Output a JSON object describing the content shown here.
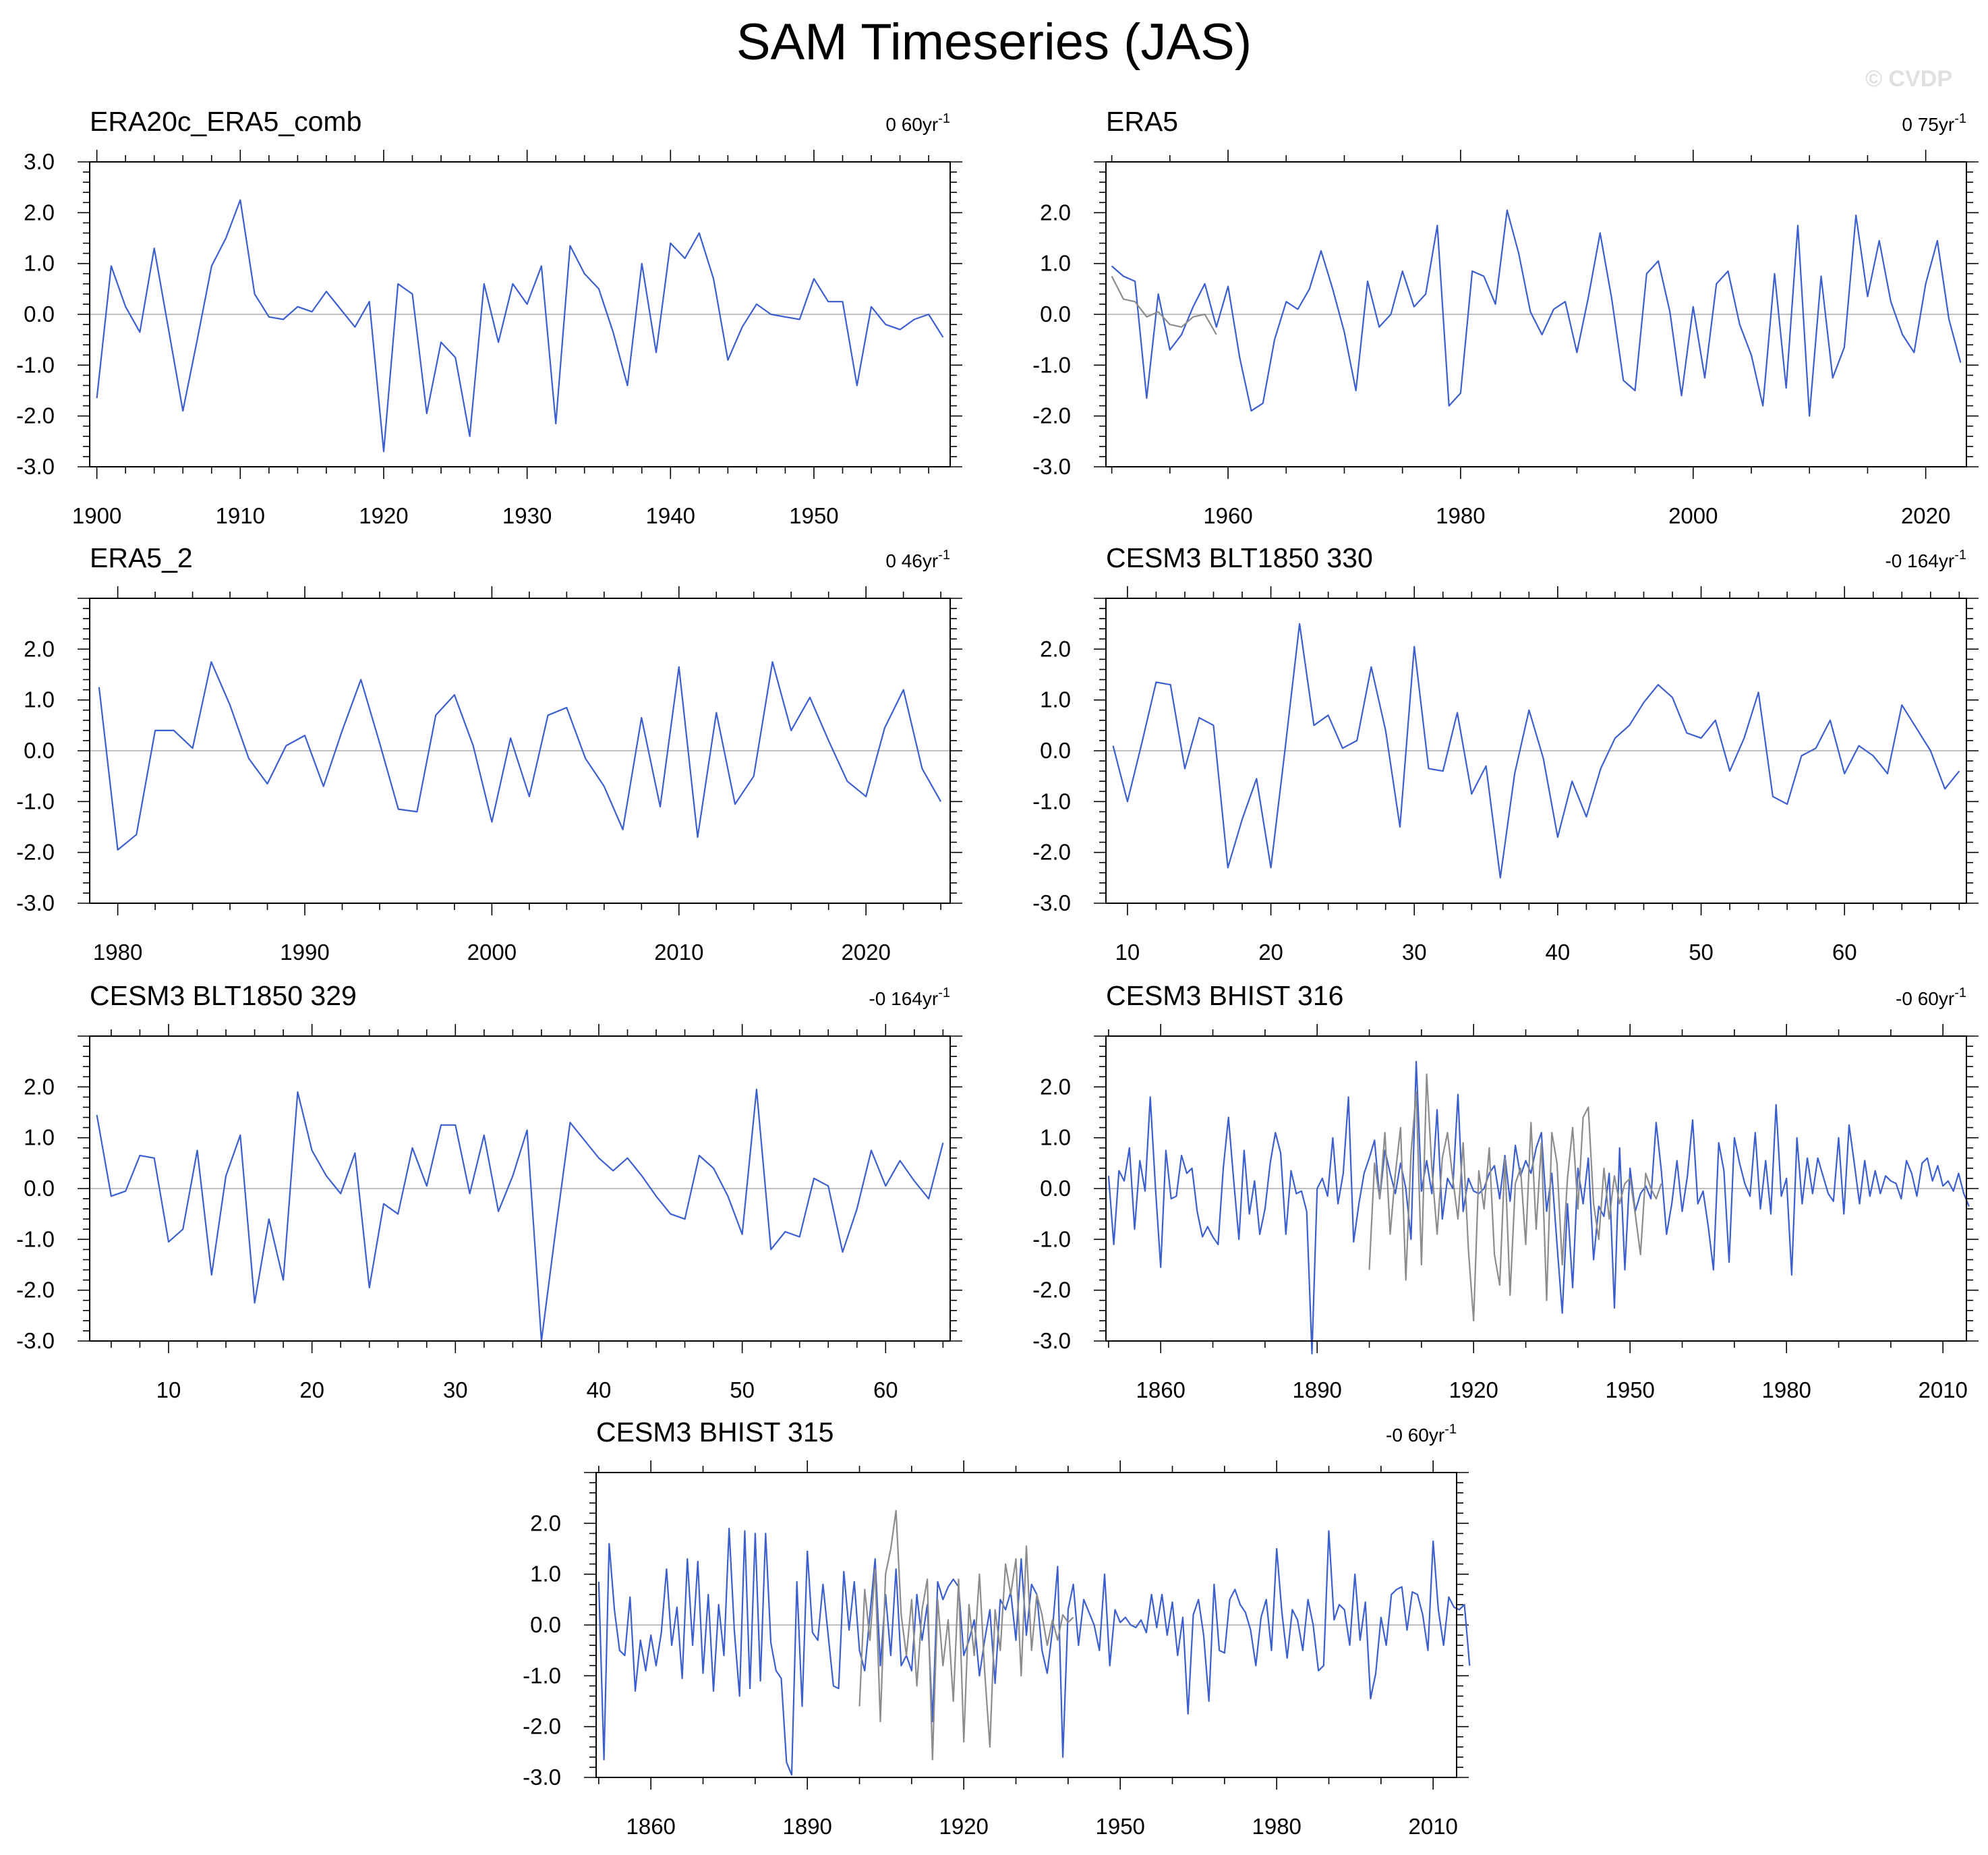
{
  "title": "SAM Timeseries (JAS)",
  "watermark": "© CVDP",
  "colors": {
    "main_series": "#3b5fcf",
    "secondary_series": "#8c8c8c",
    "zero_line": "#c0c0c0"
  },
  "chart_data": [
    {
      "type": "line",
      "title": "ERA20c_ERA5_comb",
      "trend_label": "0 60yr",
      "trend_unit_exp": "-1",
      "ylim": [
        -3.0,
        3.0
      ],
      "yticks": [
        "3.0",
        "2.0",
        "1.0",
        "0.0",
        "-1.0",
        "-2.0",
        "-3.0"
      ],
      "xlim": [
        1899.5,
        1959.5
      ],
      "xticks": [
        1900,
        1910,
        1920,
        1930,
        1940,
        1950
      ],
      "x_start": 1900,
      "series": [
        {
          "values": [
            -1.65,
            0.95,
            0.15,
            -0.35,
            1.3,
            -0.3,
            -1.9,
            -0.5,
            0.95,
            1.5,
            2.25,
            0.4,
            -0.05,
            -0.1,
            0.15,
            0.05,
            0.45,
            0.1,
            -0.25,
            0.25,
            -2.7,
            0.6,
            0.4,
            -1.95,
            -0.55,
            -0.85,
            -2.4,
            0.6,
            -0.55,
            0.6,
            0.2,
            0.95,
            -2.15,
            1.35,
            0.8,
            0.5,
            -0.35,
            -1.4,
            1.0,
            -0.75,
            1.4,
            1.1,
            1.6,
            0.7,
            -0.9,
            -0.25,
            0.2,
            0.0,
            -0.05,
            -0.1,
            0.7,
            0.25,
            0.25,
            -1.4,
            0.15,
            -0.2,
            -0.3,
            -0.1,
            0.0,
            -0.45
          ]
        }
      ]
    },
    {
      "type": "line",
      "title": "ERA5",
      "trend_label": "0 75yr",
      "trend_unit_exp": "-1",
      "ylim": [
        -3.0,
        2.0
      ],
      "yticks": [
        "2.0",
        "1.0",
        "0.0",
        "-1.0",
        "-2.0",
        "-3.0"
      ],
      "xlim": [
        1949.5,
        2023.5
      ],
      "xticks": [
        1960,
        1980,
        2000,
        2020
      ],
      "x_start": 1950,
      "series": [
        {
          "values": [
            0.95,
            0.75,
            0.65,
            -1.65,
            0.4,
            -0.7,
            -0.4,
            0.15,
            0.6,
            -0.25,
            0.55,
            -0.85,
            -1.9,
            -1.75,
            -0.5,
            0.25,
            0.1,
            0.5,
            1.25,
            0.5,
            -0.35,
            -1.5,
            0.65,
            -0.25,
            0.0,
            0.85,
            0.15,
            0.4,
            1.75,
            -1.8,
            -1.55,
            0.85,
            0.75,
            0.2,
            2.05,
            1.2,
            0.05,
            -0.4,
            0.1,
            0.25,
            -0.75,
            0.35,
            1.6,
            0.3,
            -1.3,
            -1.5,
            0.8,
            1.05,
            0.05,
            -1.6,
            0.15,
            -1.25,
            0.6,
            0.85,
            -0.2,
            -0.8,
            -1.8,
            0.8,
            -1.45,
            1.75,
            -2.0,
            0.75,
            -1.25,
            -0.65,
            1.95,
            0.35,
            1.45,
            0.25,
            -0.4,
            -0.75,
            0.6,
            1.45,
            -0.1,
            -0.95
          ]
        },
        {
          "values": [
            0.75,
            0.3,
            0.25,
            -0.05,
            0.05,
            -0.2,
            -0.25,
            -0.05,
            0.0,
            -0.4
          ],
          "secondary": true
        }
      ]
    },
    {
      "type": "line",
      "title": "ERA5_2",
      "trend_label": "0 46yr",
      "trend_unit_exp": "-1",
      "ylim": [
        -3.0,
        2.0
      ],
      "yticks": [
        "2.0",
        "1.0",
        "0.0",
        "-1.0",
        "-2.0",
        "-3.0"
      ],
      "xlim": [
        1978.5,
        2024.5
      ],
      "xticks": [
        1980,
        1990,
        2000,
        2010,
        2020
      ],
      "x_start": 1979,
      "series": [
        {
          "values": [
            1.25,
            -1.95,
            -1.65,
            0.4,
            0.4,
            0.05,
            1.75,
            0.9,
            -0.15,
            -0.65,
            0.1,
            0.3,
            -0.7,
            0.4,
            1.4,
            0.15,
            -1.15,
            -1.2,
            0.7,
            1.1,
            0.1,
            -1.4,
            0.25,
            -0.9,
            0.7,
            0.85,
            -0.15,
            -0.7,
            -1.55,
            0.65,
            -1.1,
            1.65,
            -1.7,
            0.75,
            -1.05,
            -0.5,
            1.75,
            0.4,
            1.05,
            0.2,
            -0.6,
            -0.9,
            0.45,
            1.2,
            -0.35,
            -1.0
          ]
        }
      ]
    },
    {
      "type": "line",
      "title": "CESM3 BLT1850 330",
      "trend_label": "-0 164yr",
      "trend_unit_exp": "-1",
      "ylim": [
        -3.0,
        2.0
      ],
      "yticks": [
        "2.0",
        "1.0",
        "0.0",
        "-1.0",
        "-2.0",
        "-3.0"
      ],
      "xlim": [
        8.5,
        68.5
      ],
      "xticks": [
        10,
        20,
        30,
        40,
        50,
        60
      ],
      "x_start": 9,
      "series": [
        {
          "values": [
            0.1,
            -1.0,
            0.15,
            1.35,
            1.3,
            -0.35,
            0.65,
            0.5,
            -2.3,
            -1.35,
            -0.55,
            -2.3,
            0.05,
            2.5,
            0.5,
            0.7,
            0.05,
            0.2,
            1.65,
            0.4,
            -1.5,
            2.05,
            -0.35,
            -0.4,
            0.75,
            -0.85,
            -0.3,
            -2.5,
            -0.45,
            0.8,
            -0.15,
            -1.7,
            -0.6,
            -1.3,
            -0.35,
            0.25,
            0.5,
            0.95,
            1.3,
            1.05,
            0.35,
            0.25,
            0.6,
            -0.4,
            0.25,
            1.15,
            -0.9,
            -1.05,
            -0.1,
            0.05,
            0.6,
            -0.45,
            0.1,
            -0.1,
            -0.45,
            0.9,
            0.45,
            0.0,
            -0.75,
            -0.4
          ]
        }
      ]
    },
    {
      "type": "line",
      "title": "CESM3 BLT1850 329",
      "trend_label": "-0 164yr",
      "trend_unit_exp": "-1",
      "ylim": [
        -3.0,
        2.0
      ],
      "yticks": [
        "2.0",
        "1.0",
        "0.0",
        "-1.0",
        "-2.0",
        "-3.0"
      ],
      "xlim": [
        4.5,
        64.5
      ],
      "xticks": [
        10,
        20,
        30,
        40,
        50,
        60
      ],
      "x_start": 5,
      "series": [
        {
          "values": [
            1.45,
            -0.15,
            -0.05,
            0.65,
            0.6,
            -1.05,
            -0.8,
            0.75,
            -1.7,
            0.25,
            1.05,
            -2.25,
            -0.6,
            -1.8,
            1.9,
            0.75,
            0.25,
            -0.1,
            0.7,
            -1.95,
            -0.3,
            -0.5,
            0.8,
            0.05,
            1.25,
            1.25,
            -0.1,
            1.05,
            -0.45,
            0.25,
            1.15,
            -3.0,
            -0.8,
            1.3,
            0.95,
            0.6,
            0.35,
            0.6,
            0.25,
            -0.15,
            -0.5,
            -0.6,
            0.65,
            0.4,
            -0.15,
            -0.9,
            1.95,
            -1.2,
            -0.85,
            -0.95,
            0.2,
            0.05,
            -1.25,
            -0.4,
            0.75,
            0.05,
            0.55,
            0.15,
            -0.2,
            0.9
          ]
        }
      ]
    },
    {
      "type": "line",
      "title": "CESM3 BHIST 316",
      "trend_label": "-0 60yr",
      "trend_unit_exp": "-1",
      "ylim": [
        -3.0,
        2.0
      ],
      "yticks": [
        "2.0",
        "1.0",
        "0.0",
        "-1.0",
        "-2.0",
        "-3.0"
      ],
      "xlim": [
        1849.5,
        2014.5
      ],
      "xticks": [
        1860,
        1890,
        1920,
        1950,
        1980,
        2010
      ],
      "x_start": 1850,
      "series": [
        {
          "values": [
            0.25,
            -1.1,
            0.35,
            0.15,
            0.8,
            -0.8,
            0.55,
            -0.05,
            1.8,
            0.0,
            -1.55,
            0.75,
            -0.2,
            -0.15,
            0.65,
            0.3,
            0.4,
            -0.45,
            -0.95,
            -0.75,
            -0.95,
            -1.1,
            0.4,
            1.4,
            0.15,
            -1.0,
            0.75,
            -0.5,
            0.15,
            -0.9,
            -0.4,
            0.5,
            1.1,
            0.7,
            -0.9,
            0.35,
            -0.1,
            -0.05,
            -0.45,
            -3.25,
            0.0,
            0.2,
            -0.15,
            1.0,
            -0.3,
            0.3,
            1.8,
            -1.05,
            -0.3,
            0.3,
            0.6,
            0.95,
            -0.2,
            0.75,
            0.3,
            -0.1,
            0.5,
            0.0,
            -1.0,
            2.5,
            -0.05,
            0.55,
            -0.1,
            1.55,
            -0.6,
            0.2,
            0.0,
            1.85,
            -0.45,
            0.2,
            -0.05,
            -0.1,
            0.0,
            0.3,
            0.45,
            -0.2,
            0.65,
            -0.25,
            0.85,
            0.25,
            0.55,
            0.3,
            0.8,
            1.1,
            -0.45,
            0.3,
            -1.1,
            -2.45,
            -0.3,
            -1.95,
            0.4,
            -0.3,
            0.6,
            -1.4,
            -0.35,
            -0.55,
            0.3,
            -2.35,
            0.8,
            -1.6,
            0.4,
            -0.45,
            -0.1,
            0.05,
            -0.2,
            1.3,
            0.35,
            -0.9,
            -0.3,
            0.55,
            -0.45,
            0.25,
            1.35,
            -0.3,
            -0.05,
            -0.75,
            -1.6,
            0.9,
            0.35,
            -1.45,
            1.0,
            0.5,
            0.1,
            -0.15,
            1.1,
            -0.4,
            0.55,
            -0.5,
            1.65,
            -0.15,
            0.2,
            -1.7,
            1.0,
            -0.3,
            0.6,
            -0.1,
            0.6,
            0.25,
            -0.1,
            -0.25,
            1.0,
            -0.5,
            1.25,
            0.5,
            -0.3,
            0.55,
            -0.15,
            0.35,
            -0.1,
            0.25,
            0.15,
            0.1,
            -0.2,
            0.55,
            0.3,
            -0.15,
            0.5,
            0.6,
            0.15,
            0.45,
            0.05,
            0.15,
            -0.05,
            0.3,
            -0.1,
            -0.35
          ]
        },
        {
          "values": [
            -1.6,
            0.5,
            -0.2,
            1.1,
            -0.9,
            0.3,
            1.2,
            -1.8,
            0.7,
            1.9,
            -1.5,
            2.25,
            0.4,
            -0.9,
            0.6,
            1.1,
            0.2,
            -0.6,
            0.9,
            -1.2,
            -2.6,
            0.35,
            -0.4,
            0.8,
            -1.3,
            -1.9,
            0.6,
            -2.1,
            0.1,
            0.4,
            -1.1,
            1.3,
            -0.8,
            0.9,
            -2.2,
            1.1,
            0.5,
            -1.5,
            0.2,
            1.2,
            -0.4,
            1.4,
            1.6,
            -0.3,
            -1.0,
            0.4,
            -0.6,
            0.25,
            -0.3,
            0.1,
            0.2,
            -0.5,
            -1.3,
            0.3,
            0.0,
            -0.2,
            0.1
          ],
          "secondary": true,
          "x_start": 1900
        }
      ]
    },
    {
      "type": "line",
      "title": "CESM3 BHIST 315",
      "trend_label": "-0 60yr",
      "trend_unit_exp": "-1",
      "ylim": [
        -3.0,
        2.0
      ],
      "yticks": [
        "2.0",
        "1.0",
        "0.0",
        "-1.0",
        "-2.0",
        "-3.0"
      ],
      "xlim": [
        1849.5,
        2014.5
      ],
      "xticks": [
        1860,
        1890,
        1920,
        1950,
        1980,
        2010
      ],
      "x_start": 1850,
      "series": [
        {
          "values": [
            0.85,
            -2.65,
            1.6,
            0.3,
            -0.5,
            -0.6,
            0.55,
            -1.3,
            -0.3,
            -0.9,
            -0.2,
            -0.8,
            -0.15,
            1.1,
            -0.4,
            0.35,
            -1.05,
            1.3,
            -0.4,
            1.25,
            -0.95,
            0.6,
            -1.3,
            0.4,
            -0.6,
            1.9,
            -0.1,
            -1.4,
            1.85,
            -1.25,
            1.8,
            -1.1,
            1.8,
            -0.35,
            -0.9,
            -1.05,
            -2.7,
            -2.95,
            0.85,
            -1.6,
            1.45,
            -0.15,
            -0.3,
            0.8,
            -0.2,
            -1.2,
            -1.25,
            1.05,
            -0.1,
            0.85,
            -0.5,
            -0.9,
            0.2,
            1.3,
            -0.8,
            0.6,
            -0.6,
            1.1,
            -0.8,
            -0.6,
            -0.9,
            0.6,
            -0.3,
            0.4,
            -1.9,
            0.85,
            0.5,
            0.75,
            0.9,
            0.75,
            -0.6,
            -0.3,
            0.1,
            -1.0,
            -0.3,
            0.3,
            -1.15,
            0.5,
            0.3,
            0.65,
            -0.3,
            1.3,
            -0.2,
            0.8,
            0.6,
            -0.5,
            -0.95,
            -0.1,
            1.15,
            -2.6,
            0.3,
            0.8,
            -0.4,
            0.5,
            0.25,
            0.0,
            -0.5,
            1.0,
            -0.8,
            0.3,
            0.05,
            0.15,
            0.0,
            -0.05,
            0.1,
            -0.15,
            0.6,
            -0.05,
            0.6,
            -0.2,
            0.45,
            -0.6,
            0.15,
            -1.75,
            0.2,
            0.5,
            -0.2,
            -1.5,
            0.8,
            -0.5,
            -0.55,
            0.5,
            0.7,
            0.4,
            0.25,
            -0.1,
            -0.8,
            0.15,
            0.5,
            -0.5,
            1.5,
            0.25,
            -0.65,
            0.3,
            0.1,
            -0.5,
            0.5,
            0.0,
            -0.9,
            -0.8,
            1.85,
            0.1,
            0.4,
            0.3,
            -0.4,
            1.0,
            -0.3,
            0.45,
            -1.45,
            -0.95,
            0.15,
            -0.4,
            0.6,
            0.7,
            0.75,
            -0.1,
            0.65,
            0.6,
            0.2,
            -0.5,
            1.65,
            0.3,
            -0.4,
            0.55,
            0.35,
            0.3,
            0.4,
            -0.8
          ]
        },
        {
          "values": [
            -1.6,
            0.7,
            -0.3,
            1.1,
            -1.9,
            1.0,
            1.5,
            2.25,
            0.2,
            -0.6,
            0.5,
            -1.2,
            0.3,
            0.9,
            -2.65,
            0.5,
            -0.8,
            0.1,
            -1.5,
            0.9,
            -2.3,
            0.4,
            -0.6,
            1.0,
            -0.9,
            -2.4,
            0.3,
            -0.5,
            1.2,
            0.6,
            1.3,
            -1.0,
            1.55,
            -0.5,
            0.6,
            0.2,
            -0.4,
            0.1,
            -0.3,
            0.2,
            0.05,
            0.15
          ],
          "secondary": true,
          "x_start": 1900
        }
      ]
    }
  ]
}
